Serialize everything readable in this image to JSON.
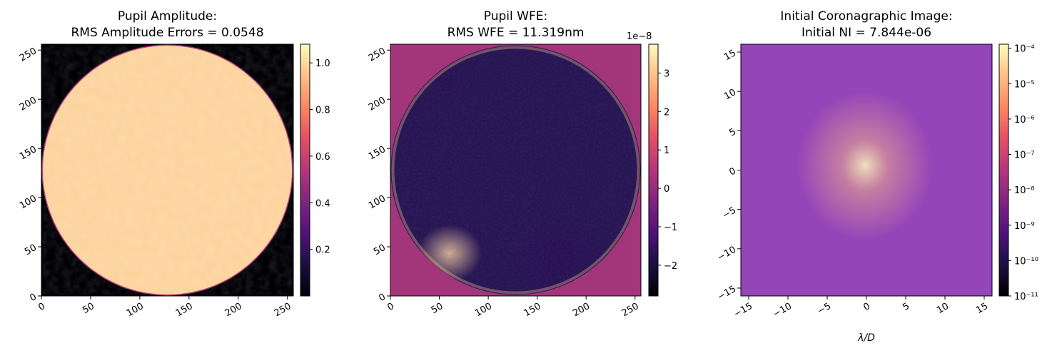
{
  "colors": {
    "colormap": "magma",
    "background": "#ffffff"
  },
  "chart_data": [
    {
      "type": "heatmap",
      "title_line1": "Pupil Amplitude:",
      "title_line2": "RMS Amplitude Errors = 0.0548",
      "xlim": [
        0,
        256
      ],
      "ylim": [
        0,
        256
      ],
      "xticks": [
        "0",
        "50",
        "100",
        "150",
        "200",
        "250"
      ],
      "yticks": [
        "0",
        "50",
        "100",
        "150",
        "200",
        "250"
      ],
      "tick_rotation_deg": -30,
      "colorbar": {
        "min": 0.0,
        "max": 1.08,
        "scale": "linear",
        "ticks": [
          "0.2",
          "0.4",
          "0.6",
          "0.8",
          "1.0"
        ],
        "tick_values": [
          0.2,
          0.4,
          0.6,
          0.8,
          1.0
        ],
        "offset_label": ""
      },
      "content": "circular pupil, amplitude ~1.0 inside, 0 outside"
    },
    {
      "type": "heatmap",
      "title_line1": "Pupil WFE:",
      "title_line2": "RMS WFE = 11.319nm",
      "xlim": [
        0,
        256
      ],
      "ylim": [
        0,
        256
      ],
      "xticks": [
        "0",
        "50",
        "100",
        "150",
        "200",
        "250"
      ],
      "yticks": [
        "0",
        "50",
        "100",
        "150",
        "200",
        "250"
      ],
      "tick_rotation_deg": -30,
      "colorbar": {
        "min": -2.8,
        "max": 3.75,
        "scale": "linear",
        "ticks": [
          "−2",
          "−1",
          "0",
          "1",
          "2",
          "3"
        ],
        "tick_values": [
          -2,
          -1,
          0,
          1,
          2,
          3
        ],
        "offset_label": "1e−8"
      },
      "content": "wavefront error map inside circular pupil, 0 outside"
    },
    {
      "type": "heatmap",
      "title_line1": "Initial Coronagraphic Image:",
      "title_line2": "Initial NI = 7.844e-06",
      "xlim": [
        -16,
        16
      ],
      "ylim": [
        -16,
        16
      ],
      "xticks": [
        "−15",
        "−10",
        "−5",
        "0",
        "5",
        "10",
        "15"
      ],
      "xtick_values": [
        -15,
        -10,
        -5,
        0,
        5,
        10,
        15
      ],
      "yticks": [
        "−15",
        "−10",
        "−5",
        "0",
        "5",
        "10",
        "15"
      ],
      "ytick_values": [
        -15,
        -10,
        -5,
        0,
        5,
        10,
        15
      ],
      "xlabel": "λ/D",
      "tick_rotation_deg": -30,
      "colorbar": {
        "min": -11,
        "max": 0.00013,
        "scale": "log",
        "ticks": [
          "10⁻¹¹",
          "10⁻¹⁰",
          "10⁻⁹",
          "10⁻⁸",
          "10⁻⁷",
          "10⁻⁶",
          "10⁻⁵",
          "10⁻⁴"
        ],
        "tick_exponents": [
          -11,
          -10,
          -9,
          -8,
          -7,
          -6,
          -5,
          -4
        ],
        "offset_label": ""
      },
      "content": "speckle field, log normalized intensity"
    }
  ]
}
